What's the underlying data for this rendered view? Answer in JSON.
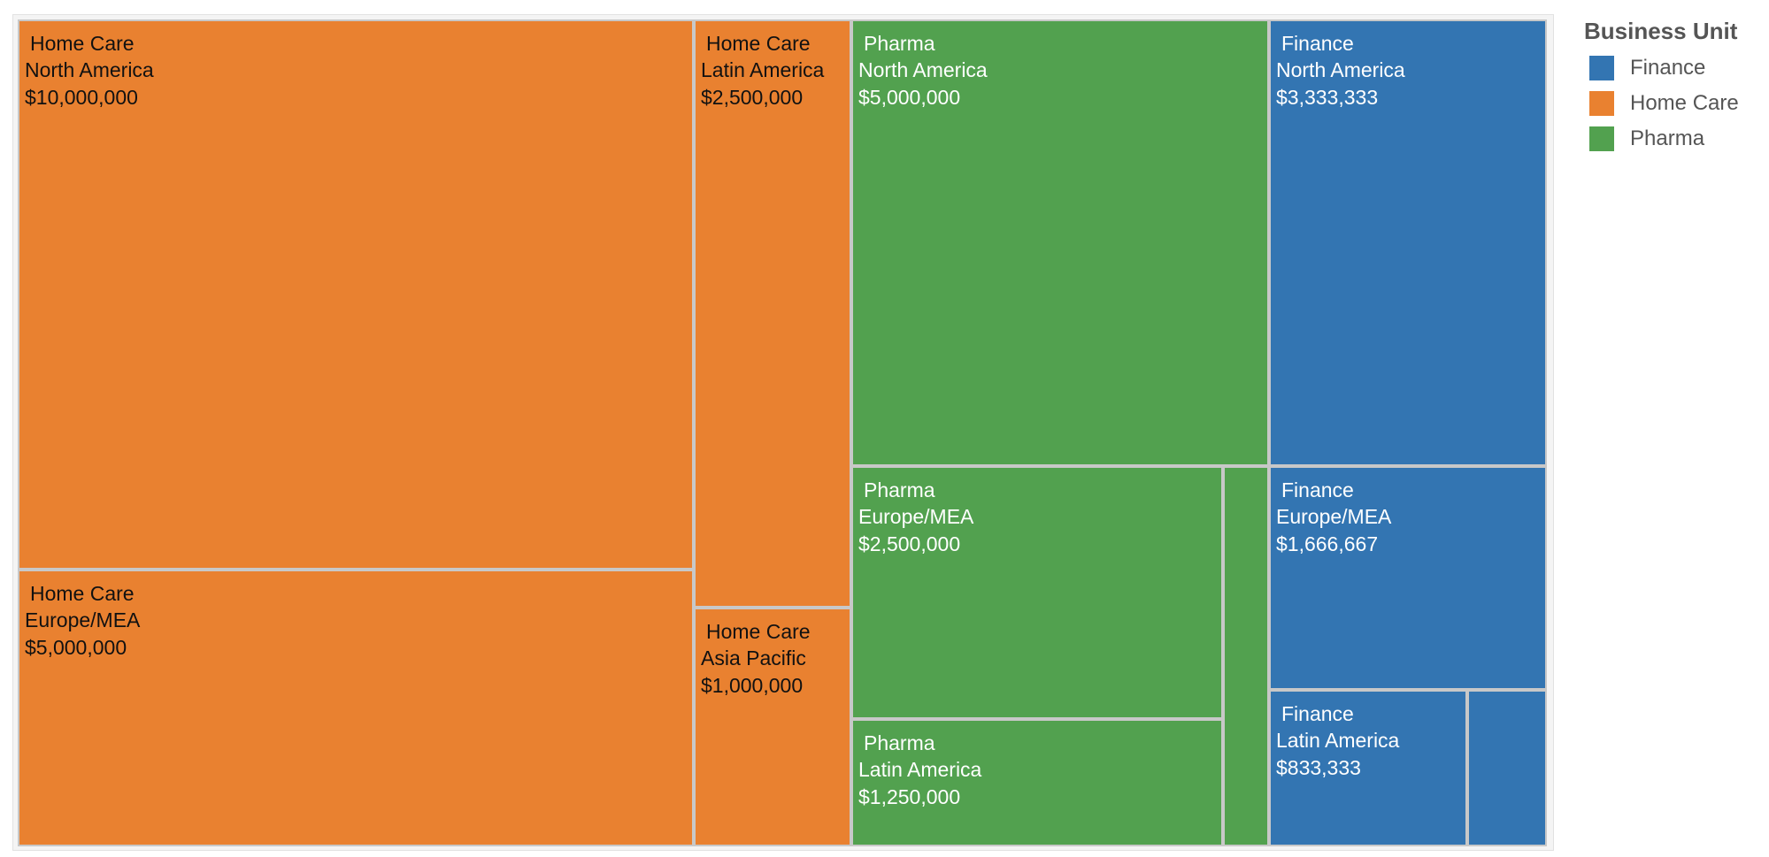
{
  "colors": {
    "Finance": "#3375b2",
    "Home Care": "#e98130",
    "Pharma": "#52a14f"
  },
  "legend": {
    "title": "Business Unit",
    "items": [
      {
        "label": "Finance",
        "color": "#3375b2"
      },
      {
        "label": "Home Care",
        "color": "#e98130"
      },
      {
        "label": "Pharma",
        "color": "#52a14f"
      }
    ]
  },
  "chart_data": {
    "type": "treemap",
    "legend_placement": "right",
    "items": [
      {
        "business_unit": "Home Care",
        "region": "North America",
        "value": 10000000,
        "value_label": "$10,000,000"
      },
      {
        "business_unit": "Home Care",
        "region": "Europe/MEA",
        "value": 5000000,
        "value_label": "$5,000,000"
      },
      {
        "business_unit": "Home Care",
        "region": "Latin America",
        "value": 2500000,
        "value_label": "$2,500,000"
      },
      {
        "business_unit": "Home Care",
        "region": "Asia Pacific",
        "value": 1000000,
        "value_label": "$1,000,000"
      },
      {
        "business_unit": "Pharma",
        "region": "North America",
        "value": 5000000,
        "value_label": "$5,000,000"
      },
      {
        "business_unit": "Pharma",
        "region": "Europe/MEA",
        "value": 2500000,
        "value_label": "$2,500,000"
      },
      {
        "business_unit": "Pharma",
        "region": "Latin America",
        "value": 1250000,
        "value_label": "$1,250,000"
      },
      {
        "business_unit": "Pharma",
        "region": "",
        "value": 500000,
        "value_label": ""
      },
      {
        "business_unit": "Finance",
        "region": "North America",
        "value": 3333333,
        "value_label": "$3,333,333"
      },
      {
        "business_unit": "Finance",
        "region": "Europe/MEA",
        "value": 1666667,
        "value_label": "$1,666,667"
      },
      {
        "business_unit": "Finance",
        "region": "Latin America",
        "value": 833333,
        "value_label": "$833,333"
      },
      {
        "business_unit": "Finance",
        "region": "",
        "value": 333333,
        "value_label": ""
      }
    ]
  }
}
